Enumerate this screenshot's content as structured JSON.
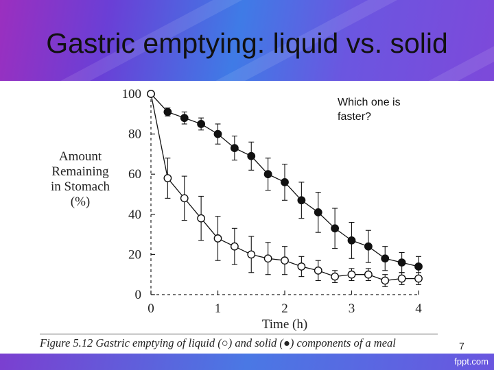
{
  "slide": {
    "title": "Gastric emptying: liquid vs. solid",
    "question": "Which one is faster?",
    "page_number": "7",
    "brand": "fppt.com"
  },
  "figure": {
    "caption_label": "Figure 5.12",
    "caption_text_1": "Gastric emptying of liquid (",
    "caption_text_2": ") and solid (",
    "caption_text_3": ") components of a meal"
  },
  "chart_data": {
    "type": "scatter",
    "xlabel": "Time (h)",
    "ylabel_lines": [
      "Amount",
      "Remaining",
      "in Stomach",
      "(%)"
    ],
    "xlim": [
      0,
      4
    ],
    "ylim": [
      0,
      100
    ],
    "xticks": [
      0,
      1,
      2,
      3,
      4
    ],
    "yticks": [
      0,
      20,
      40,
      60,
      80,
      100
    ],
    "grid": false,
    "series": [
      {
        "marker": "filled-circle",
        "x": [
          0,
          0.25,
          0.5,
          0.75,
          1.0,
          1.25,
          1.5,
          1.75,
          2.0,
          2.25,
          2.5,
          2.75,
          3.0,
          3.25,
          3.5,
          3.75,
          4.0
        ],
        "y": [
          100,
          91,
          88,
          85,
          80,
          73,
          69,
          60,
          56,
          47,
          41,
          33,
          27,
          24,
          18,
          16,
          14
        ],
        "err": [
          0,
          2,
          3,
          3,
          5,
          6,
          7,
          8,
          9,
          9,
          10,
          10,
          9,
          8,
          6,
          5,
          5
        ]
      },
      {
        "marker": "open-circle",
        "x": [
          0,
          0.25,
          0.5,
          0.75,
          1.0,
          1.25,
          1.5,
          1.75,
          2.0,
          2.25,
          2.5,
          2.75,
          3.0,
          3.25,
          3.5,
          3.75,
          4.0
        ],
        "y": [
          100,
          58,
          48,
          38,
          28,
          24,
          20,
          18,
          17,
          14,
          12,
          9,
          10,
          10,
          7,
          8,
          8
        ],
        "err": [
          0,
          10,
          11,
          11,
          11,
          9,
          9,
          8,
          7,
          5,
          5,
          3,
          3,
          3,
          3,
          3,
          3
        ]
      }
    ]
  }
}
